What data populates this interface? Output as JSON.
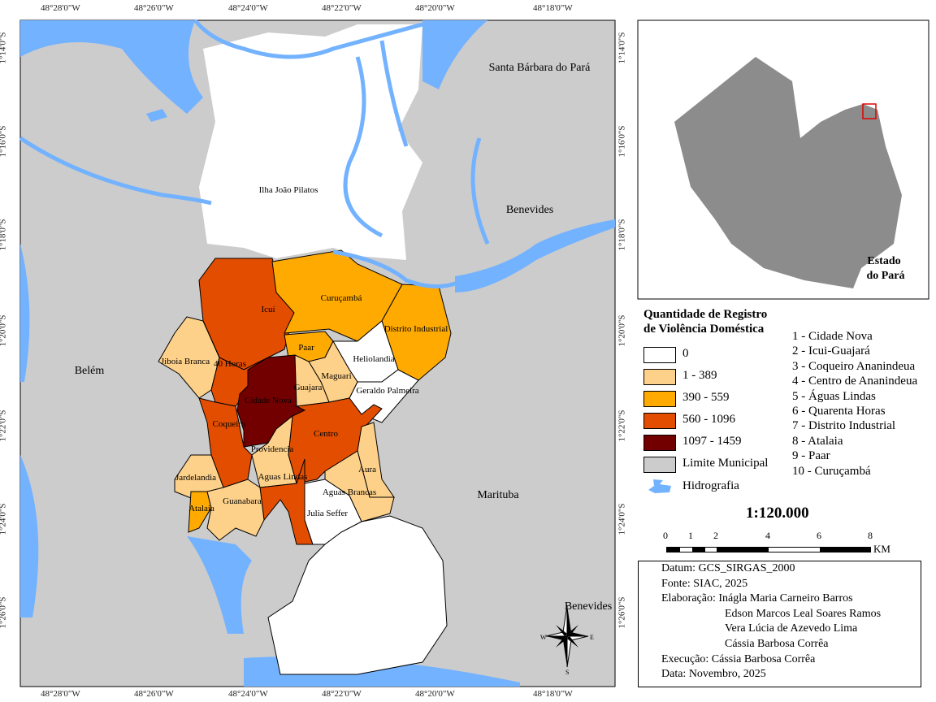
{
  "map": {
    "top_coords": [
      "48°28'0\"W",
      "48°26'0\"W",
      "48°24'0\"W",
      "48°22'0\"W",
      "48°20'0\"W",
      "48°18'0\"W"
    ],
    "side_coords": [
      "1°14'0\"S",
      "1°16'0\"S",
      "1°18'0\"S",
      "1°20'0\"S",
      "1°22'0\"S",
      "1°24'0\"S",
      "1°26'0\"S"
    ],
    "municipalities": [
      "Santa Bárbara do Pará",
      "Benevides",
      "Belém",
      "Marituba",
      "Benevides"
    ],
    "neighborhoods": [
      "Ilha João Pilatos",
      "Icuí",
      "Curuçambá",
      "Distrito Industrial",
      "Paar",
      "Heliolandia",
      "Jiboia Branca",
      "40 Horas",
      "Maguari",
      "Guajara",
      "Geraldo Palmeira",
      "Cidade Nova",
      "Coqueiro",
      "Centro",
      "Providencia",
      "Aura",
      "Jardelandia",
      "Aguas Lindas",
      "Aguas Brancas",
      "Atalaia",
      "Guanabara",
      "Julia Seffer"
    ],
    "compass": {
      "n": "N",
      "s": "S",
      "e": "E",
      "w": "W"
    }
  },
  "inset": {
    "label_line1": "Estado",
    "label_line2": "do Pará"
  },
  "legend": {
    "title_line1": "Quantidade de Registro",
    "title_line2": "de Violência Doméstica",
    "classes": [
      {
        "label": "0",
        "color": "#ffffff"
      },
      {
        "label": "1 - 389",
        "color": "#fed18a"
      },
      {
        "label": "390 - 559",
        "color": "#ffaa00"
      },
      {
        "label": "560 - 1096",
        "color": "#e34d00"
      },
      {
        "label": "1097 - 1459",
        "color": "#730000"
      },
      {
        "label": "Limite Municipal",
        "color": "#cccccc"
      }
    ],
    "hydro": {
      "label": "Hidrografia",
      "color": "#73b2ff"
    },
    "numbered": [
      "1 - Cidade Nova",
      "2 - Icui-Guajará",
      "3 - Coqueiro Ananindeua",
      "4 - Centro de Ananindeua",
      "5 - Águas Lindas",
      "6 - Quarenta Horas",
      "7 - Distrito Industrial",
      "8 - Atalaia",
      "9 - Paar",
      "10 - Curuçambá"
    ]
  },
  "scale": {
    "ratio": "1:120.000",
    "ticks": [
      "0",
      "1",
      "2",
      "4",
      "6",
      "8"
    ],
    "unit": "KM"
  },
  "credits": {
    "lines": [
      "Datum: GCS_SIRGAS_2000",
      "Fonte: SIAC, 2025",
      "Elaboração: Inágla Maria Carneiro Barros",
      "Edson Marcos Leal Soares Ramos",
      "Vera Lúcia de Azevedo Lima",
      "Cássia Barbosa Corrêa",
      "Execução: Cássia Barbosa Corrêa",
      "Data: Novembro, 2025"
    ]
  }
}
